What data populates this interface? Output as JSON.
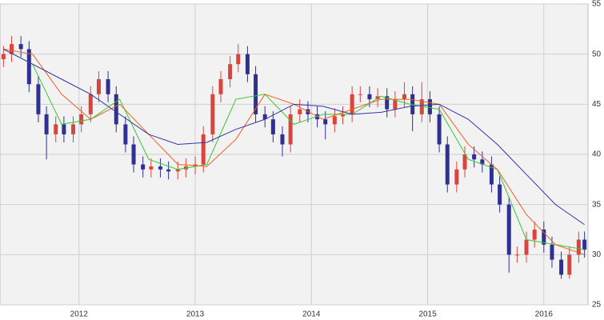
{
  "chart_data": {
    "type": "candlestick",
    "x": [
      2011.35,
      2011.42,
      2011.5,
      2011.57,
      2011.65,
      2011.72,
      2011.8,
      2011.87,
      2011.95,
      2012.02,
      2012.1,
      2012.17,
      2012.25,
      2012.32,
      2012.4,
      2012.47,
      2012.55,
      2012.62,
      2012.7,
      2012.77,
      2012.85,
      2012.92,
      2013.0,
      2013.07,
      2013.15,
      2013.22,
      2013.3,
      2013.37,
      2013.45,
      2013.52,
      2013.6,
      2013.67,
      2013.75,
      2013.82,
      2013.9,
      2013.97,
      2014.05,
      2014.12,
      2014.2,
      2014.27,
      2014.35,
      2014.42,
      2014.5,
      2014.57,
      2014.65,
      2014.72,
      2014.8,
      2014.87,
      2014.95,
      2015.02,
      2015.1,
      2015.17,
      2015.25,
      2015.32,
      2015.4,
      2015.47,
      2015.55,
      2015.62,
      2015.7,
      2015.77,
      2015.85,
      2015.92,
      2016.0,
      2016.07,
      2016.15,
      2016.22,
      2016.3,
      2016.35
    ],
    "open": [
      49.5,
      50,
      51,
      50.5,
      47,
      44,
      42,
      43,
      42,
      43,
      44,
      46,
      47.5,
      46,
      43,
      41,
      39,
      38.5,
      38.8,
      38.5,
      38.3,
      38.5,
      38.8,
      39,
      42,
      46,
      47.5,
      49,
      50,
      48,
      44,
      43.5,
      42,
      41,
      44,
      44.5,
      44,
      43.5,
      43,
      43.8,
      44,
      46,
      46,
      45.5,
      45.8,
      44.5,
      45.5,
      46,
      44,
      45.5,
      44,
      41,
      37,
      38.5,
      40,
      39.5,
      39,
      37,
      35,
      30,
      30,
      31.5,
      32.5,
      31,
      29.5,
      28,
      30,
      31.5
    ],
    "high": [
      50.8,
      51.8,
      51.8,
      51.3,
      47.8,
      44.8,
      43.8,
      43.8,
      43.8,
      44.8,
      46.8,
      48.3,
      48.3,
      46.8,
      43.8,
      41.8,
      39.8,
      39.6,
      39.6,
      39.3,
      39.3,
      39.6,
      39.8,
      42.8,
      46.8,
      48.3,
      49.8,
      51,
      50.8,
      48.8,
      44.8,
      44.3,
      42.8,
      44.8,
      45.5,
      45.3,
      44.8,
      44.3,
      44.6,
      44.8,
      46.8,
      46.8,
      46.8,
      46.6,
      46.6,
      46.3,
      47.2,
      46.8,
      47.2,
      46.3,
      44.8,
      41.8,
      39.3,
      40.8,
      40.8,
      40.3,
      39.8,
      37.8,
      35.8,
      30.8,
      32.3,
      33.3,
      33.3,
      31.8,
      30.3,
      30.8,
      32.3,
      32.3
    ],
    "low": [
      48.7,
      49.2,
      49.7,
      46.2,
      43.2,
      39.5,
      41.2,
      41.2,
      41.2,
      42.2,
      43.2,
      45.2,
      45.2,
      42.2,
      40.2,
      38.2,
      37.7,
      37.7,
      37.7,
      37.5,
      37.5,
      37.7,
      38,
      38.2,
      41.2,
      45.2,
      46.7,
      48.2,
      47.2,
      43.2,
      42.7,
      41.2,
      39.8,
      40.2,
      43.2,
      43.2,
      42.7,
      41.5,
      42.2,
      43,
      43.2,
      45.2,
      44.7,
      44.7,
      43.7,
      43.7,
      44.7,
      42.3,
      43.2,
      43.2,
      40.2,
      36.2,
      36.2,
      37.7,
      38.7,
      38.2,
      36.2,
      34.2,
      28.2,
      29.2,
      29.2,
      30.7,
      30.2,
      28.7,
      27.6,
      27.6,
      29.2,
      29.7
    ],
    "close": [
      50,
      51,
      50.5,
      47,
      44,
      42,
      43,
      42,
      43,
      44,
      46,
      47.5,
      46,
      43,
      41,
      39,
      38.5,
      38.8,
      38.5,
      38.3,
      38.5,
      38.8,
      39,
      42,
      46,
      47.5,
      49,
      50,
      48,
      44,
      43.5,
      42,
      41,
      44,
      44.5,
      44,
      43.5,
      43,
      43.8,
      44,
      46,
      46,
      45.5,
      45.8,
      44.5,
      45.5,
      46,
      44,
      45.5,
      44,
      41,
      37,
      38.5,
      40,
      39.5,
      39,
      37,
      35,
      30,
      30,
      31.5,
      32.5,
      31,
      29.5,
      28,
      30,
      31.5,
      30.5
    ],
    "up_color": "#d9453d",
    "down_color": "#2e3192",
    "overlays": [
      {
        "color": "#33cc33",
        "x": [
          2011.35,
          2011.6,
          2011.85,
          2012.1,
          2012.35,
          2012.6,
          2012.85,
          2013.1,
          2013.35,
          2013.6,
          2013.85,
          2014.1,
          2014.35,
          2014.6,
          2014.85,
          2015.1,
          2015.35,
          2015.6,
          2015.85,
          2016.1,
          2016.35
        ],
        "values": [
          50.5,
          49,
          43,
          43.5,
          45.5,
          39.5,
          38.5,
          39,
          45.5,
          46,
          43,
          44,
          44,
          45.8,
          45,
          44.5,
          39.5,
          38.5,
          31.5,
          31,
          30.5
        ]
      },
      {
        "color": "#f06020",
        "x": [
          2011.35,
          2011.6,
          2011.85,
          2012.1,
          2012.35,
          2012.6,
          2012.85,
          2013.1,
          2013.35,
          2013.6,
          2013.85,
          2014.1,
          2014.35,
          2014.6,
          2014.85,
          2015.1,
          2015.35,
          2015.6,
          2015.85,
          2016.1,
          2016.35
        ],
        "values": [
          50.5,
          50,
          46,
          43.5,
          45,
          42,
          39,
          38.8,
          41.5,
          46,
          45,
          43.5,
          44.5,
          45.5,
          45.5,
          45,
          41,
          38.5,
          34,
          31,
          30
        ]
      },
      {
        "color": "#3333aa",
        "x": [
          2011.35,
          2011.6,
          2011.85,
          2012.1,
          2012.35,
          2012.6,
          2012.85,
          2013.1,
          2013.35,
          2013.6,
          2013.85,
          2014.1,
          2014.35,
          2014.6,
          2014.85,
          2015.1,
          2015.35,
          2015.6,
          2015.85,
          2016.1,
          2016.35
        ],
        "values": [
          50.5,
          49,
          47.5,
          46,
          44,
          42,
          41,
          41.2,
          42.5,
          43.5,
          45,
          44.8,
          44,
          44.2,
          44.8,
          45,
          43.5,
          41,
          38,
          35,
          33
        ]
      }
    ],
    "xlim": [
      2011.32,
      2016.38
    ],
    "xticks": [
      2012,
      2013,
      2014,
      2015,
      2016
    ],
    "ylim": [
      25,
      55
    ],
    "yticks": [
      25,
      30,
      35,
      40,
      45,
      50,
      55
    ],
    "grid": true
  }
}
